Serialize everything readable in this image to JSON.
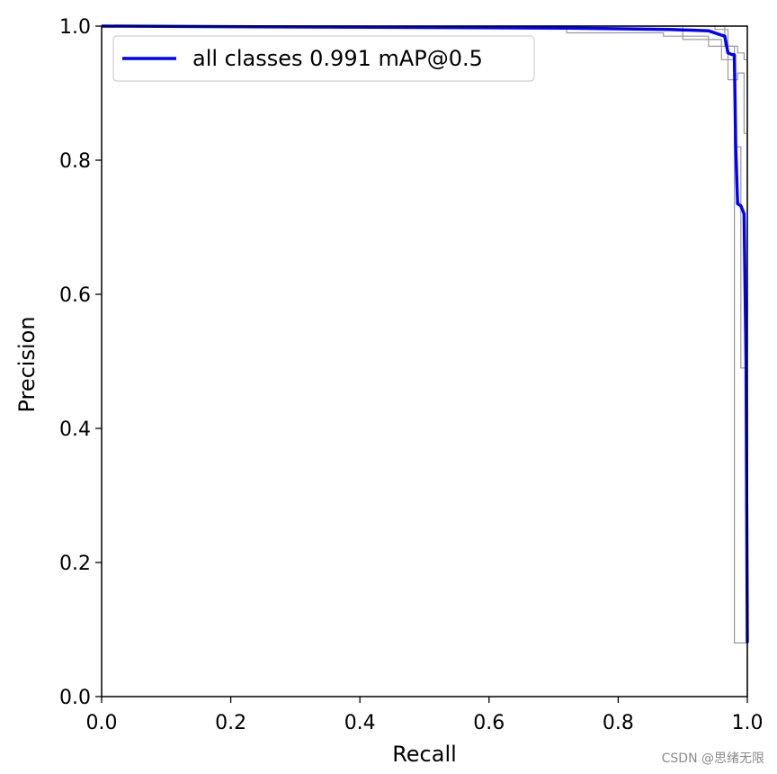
{
  "chart_data": {
    "type": "line",
    "xlabel": "Recall",
    "ylabel": "Precision",
    "xlim": [
      0,
      1
    ],
    "ylim": [
      0,
      1
    ],
    "xticks": [
      "0.0",
      "0.2",
      "0.4",
      "0.6",
      "0.8",
      "1.0"
    ],
    "yticks": [
      "0.0",
      "0.2",
      "0.4",
      "0.6",
      "0.8",
      "1.0"
    ],
    "grid": false,
    "legend_position": "top-left",
    "series": [
      {
        "name": "all classes 0.991 mAP@0.5",
        "color": "#0000ff",
        "x": [
          0.0,
          0.72,
          0.88,
          0.94,
          0.955,
          0.965,
          0.97,
          0.975,
          0.98,
          0.982,
          0.985,
          0.99,
          0.995,
          0.998,
          1.0
        ],
        "y": [
          1.0,
          0.997,
          0.995,
          0.993,
          0.988,
          0.985,
          0.96,
          0.958,
          0.957,
          0.82,
          0.735,
          0.732,
          0.72,
          0.5,
          0.08
        ]
      },
      {
        "color": "#9a9a9a",
        "x": [
          0.0,
          0.72,
          0.72,
          0.87,
          0.87,
          0.94,
          0.94,
          0.98,
          0.98,
          1.0,
          1.0
        ],
        "y": [
          1.0,
          1.0,
          0.99,
          0.99,
          0.985,
          0.985,
          0.97,
          0.97,
          0.08,
          0.08,
          0.0
        ]
      },
      {
        "color": "#9a9a9a",
        "x": [
          0.0,
          0.9,
          0.9,
          0.96,
          0.96,
          0.98,
          0.98,
          0.99,
          0.99,
          1.0,
          1.0
        ],
        "y": [
          1.0,
          1.0,
          0.98,
          0.98,
          0.95,
          0.95,
          0.82,
          0.82,
          0.49,
          0.49,
          0.07
        ]
      },
      {
        "color": "#9a9a9a",
        "x": [
          0.0,
          0.95,
          0.95,
          0.97,
          0.97,
          0.985,
          0.985,
          0.995,
          0.995,
          1.0,
          1.0
        ],
        "y": [
          1.0,
          1.0,
          0.995,
          0.995,
          0.92,
          0.92,
          0.93,
          0.93,
          0.84,
          0.84,
          0.0
        ]
      },
      {
        "color": "#9a9a9a",
        "x": [
          0.0,
          0.965,
          0.965,
          0.985,
          0.985,
          0.995,
          0.995,
          1.0,
          1.0
        ],
        "y": [
          1.0,
          1.0,
          0.97,
          0.97,
          0.96,
          0.96,
          0.95,
          0.95,
          0.1
        ]
      }
    ]
  },
  "watermark": "CSDN @思绪无限"
}
